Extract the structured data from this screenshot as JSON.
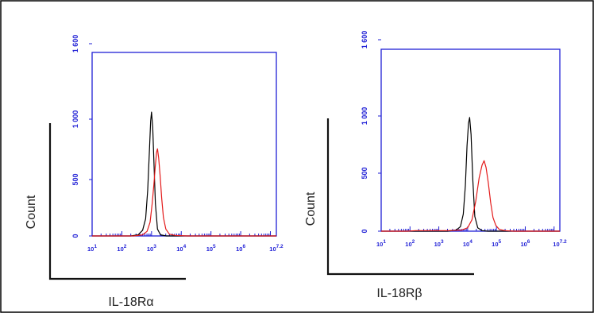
{
  "chart_data": [
    {
      "type": "histogram",
      "xlabel": "IL-18Rα",
      "ylabel": "Count",
      "x_scale": "log",
      "xlim": [
        1,
        7.2
      ],
      "ylim": [
        0,
        1600
      ],
      "y_tick_labels": [
        "0",
        "500",
        "1 000",
        "1 600"
      ],
      "x_tick_labels": [
        "10^1",
        "10^2",
        "10^3",
        "10^4",
        "10^5",
        "10^6",
        "10^7.2"
      ],
      "series": [
        {
          "color": "#000000",
          "points": [
            [
              1.0,
              0
            ],
            [
              2.0,
              0
            ],
            [
              2.3,
              0
            ],
            [
              2.55,
              10
            ],
            [
              2.7,
              50
            ],
            [
              2.8,
              150
            ],
            [
              2.87,
              400
            ],
            [
              2.93,
              750
            ],
            [
              2.97,
              1000
            ],
            [
              3.0,
              1080
            ],
            [
              3.04,
              950
            ],
            [
              3.08,
              650
            ],
            [
              3.13,
              280
            ],
            [
              3.2,
              60
            ],
            [
              3.3,
              10
            ],
            [
              3.5,
              0
            ],
            [
              4.3,
              0
            ],
            [
              7.2,
              0
            ]
          ]
        },
        {
          "color": "#e31a1a",
          "points": [
            [
              1.0,
              0
            ],
            [
              2.4,
              0
            ],
            [
              2.7,
              10
            ],
            [
              2.85,
              40
            ],
            [
              2.95,
              120
            ],
            [
              3.02,
              280
            ],
            [
              3.08,
              450
            ],
            [
              3.13,
              620
            ],
            [
              3.17,
              730
            ],
            [
              3.2,
              760
            ],
            [
              3.24,
              680
            ],
            [
              3.29,
              520
            ],
            [
              3.34,
              330
            ],
            [
              3.4,
              160
            ],
            [
              3.48,
              60
            ],
            [
              3.6,
              15
            ],
            [
              3.8,
              5
            ],
            [
              4.2,
              0
            ],
            [
              7.2,
              0
            ]
          ]
        }
      ]
    },
    {
      "type": "histogram",
      "xlabel": "IL-18Rβ",
      "ylabel": "Count",
      "x_scale": "log",
      "xlim": [
        1,
        7.2
      ],
      "ylim": [
        0,
        1600
      ],
      "y_tick_labels": [
        "0",
        "500",
        "1 000",
        "1 600"
      ],
      "x_tick_labels": [
        "10^1",
        "10^2",
        "10^3",
        "10^4",
        "10^5",
        "10^6",
        "10^7.2"
      ],
      "series": [
        {
          "color": "#000000",
          "points": [
            [
              1.0,
              0
            ],
            [
              3.3,
              0
            ],
            [
              3.6,
              10
            ],
            [
              3.75,
              40
            ],
            [
              3.85,
              150
            ],
            [
              3.92,
              400
            ],
            [
              3.98,
              750
            ],
            [
              4.03,
              950
            ],
            [
              4.07,
              1000
            ],
            [
              4.12,
              850
            ],
            [
              4.18,
              450
            ],
            [
              4.25,
              130
            ],
            [
              4.35,
              30
            ],
            [
              4.5,
              5
            ],
            [
              4.7,
              0
            ],
            [
              7.2,
              0
            ]
          ]
        },
        {
          "color": "#e31a1a",
          "points": [
            [
              1.0,
              0
            ],
            [
              1.9,
              0
            ],
            [
              2.2,
              5
            ],
            [
              3.3,
              5
            ],
            [
              3.8,
              10
            ],
            [
              4.0,
              30
            ],
            [
              4.15,
              100
            ],
            [
              4.28,
              260
            ],
            [
              4.4,
              470
            ],
            [
              4.5,
              580
            ],
            [
              4.57,
              620
            ],
            [
              4.64,
              560
            ],
            [
              4.72,
              420
            ],
            [
              4.8,
              250
            ],
            [
              4.88,
              120
            ],
            [
              4.98,
              50
            ],
            [
              5.1,
              15
            ],
            [
              5.3,
              5
            ],
            [
              5.6,
              0
            ],
            [
              7.2,
              0
            ]
          ]
        }
      ]
    }
  ]
}
